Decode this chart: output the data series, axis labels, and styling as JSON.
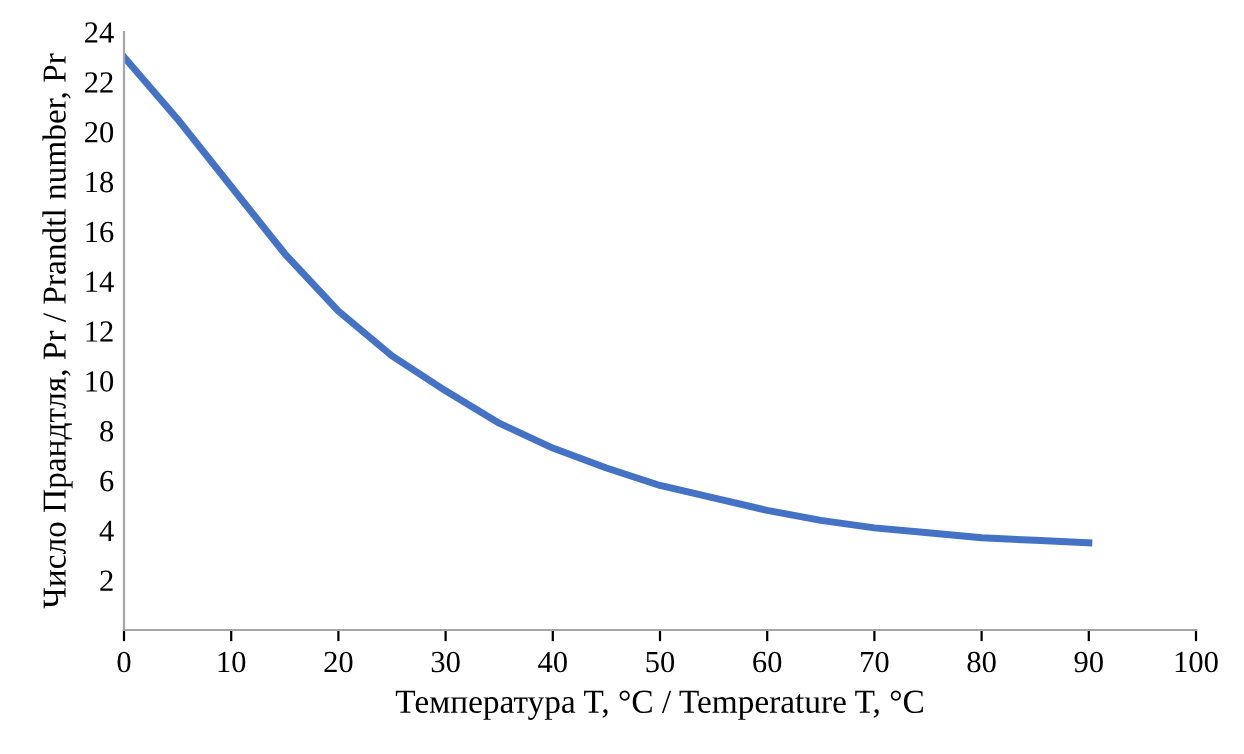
{
  "chart_data": {
    "type": "line",
    "xlabel": "Температура T, °C / Temperature T, °C",
    "ylabel": "Число Прандтля, Pr / Prandtl number, Pr",
    "series": [
      {
        "color": "#4472c4",
        "x": [
          0,
          5,
          10,
          15,
          20,
          25,
          30,
          35,
          40,
          45,
          50,
          55,
          60,
          65,
          70,
          75,
          80,
          85,
          90
        ],
        "values": [
          23,
          20.5,
          17.8,
          15.1,
          12.8,
          11,
          9.6,
          8.3,
          7.3,
          6.5,
          5.8,
          5.3,
          4.8,
          4.4,
          4.1,
          3.9,
          3.7,
          3.6,
          3.5
        ]
      }
    ],
    "xlim": [
      0,
      100
    ],
    "xticks": [
      0,
      10,
      20,
      30,
      40,
      50,
      60,
      70,
      80,
      90,
      100
    ],
    "ylim": [
      0,
      24
    ],
    "yticks": [
      {
        "value": 0,
        "label": null
      },
      2,
      4,
      6,
      8,
      10,
      12,
      14,
      16,
      18,
      20,
      22,
      24
    ],
    "grid": false,
    "legend": false,
    "marker": "none",
    "line_style": "solid"
  }
}
